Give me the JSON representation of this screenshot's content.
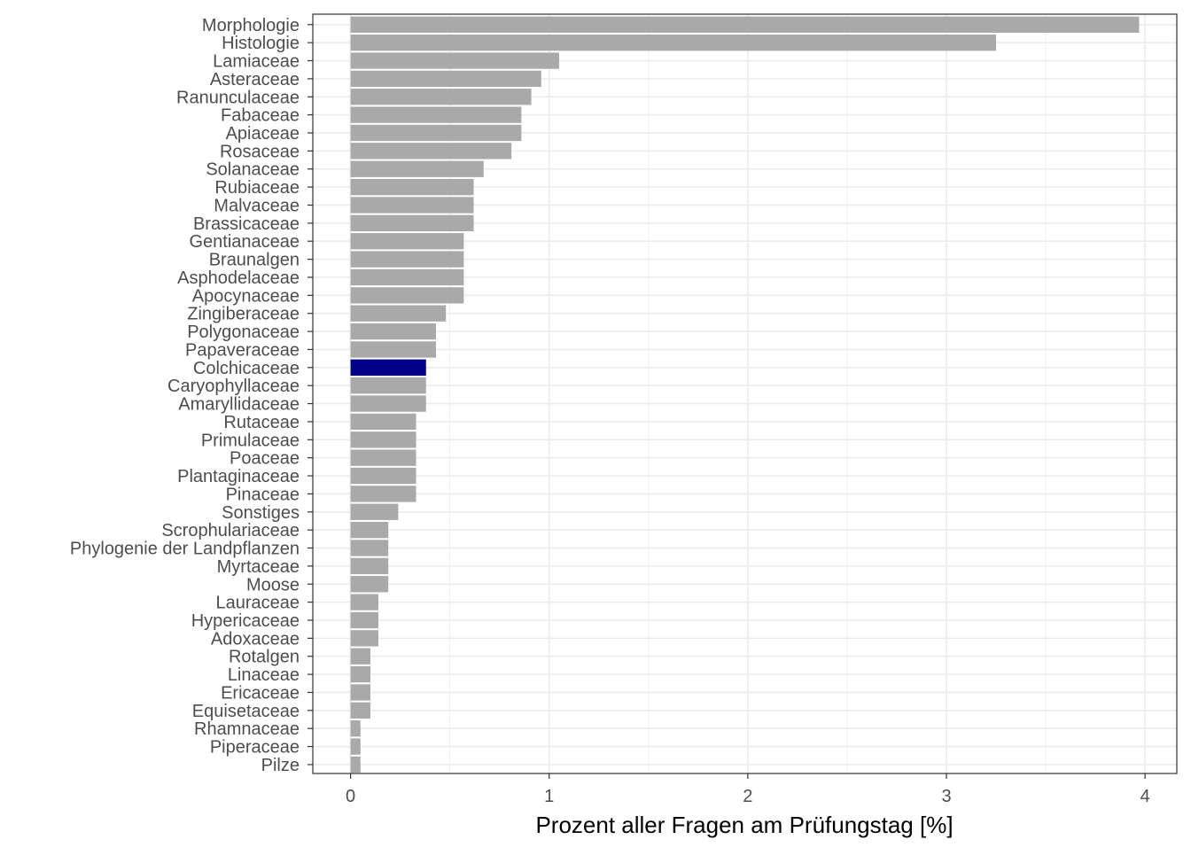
{
  "chart_data": {
    "type": "bar",
    "orientation": "horizontal",
    "xlabel": "Prozent aller Fragen am Prüfungstag [%]",
    "ylabel": "",
    "xlim": [
      -0.19,
      4.16
    ],
    "xticks": [
      0,
      1,
      2,
      3,
      4
    ],
    "grid": true,
    "colors": {
      "default_bar": "#a9a9a9",
      "highlight_bar": "#00008b",
      "grid": "#ebebeb",
      "panel_border": "#333333"
    },
    "highlight": "Colchicaceae",
    "categories": [
      "Morphologie",
      "Histologie",
      "Lamiaceae",
      "Asteraceae",
      "Ranunculaceae",
      "Fabaceae",
      "Apiaceae",
      "Rosaceae",
      "Solanaceae",
      "Rubiaceae",
      "Malvaceae",
      "Brassicaceae",
      "Gentianaceae",
      "Braunalgen",
      "Asphodelaceae",
      "Apocynaceae",
      "Zingiberaceae",
      "Polygonaceae",
      "Papaveraceae",
      "Colchicaceae",
      "Caryophyllaceae",
      "Amaryllidaceae",
      "Rutaceae",
      "Primulaceae",
      "Poaceae",
      "Plantaginaceae",
      "Pinaceae",
      "Sonstiges",
      "Scrophulariaceae",
      "Phylogenie der Landpflanzen",
      "Myrtaceae",
      "Moose",
      "Lauraceae",
      "Hypericaceae",
      "Adoxaceae",
      "Rotalgen",
      "Linaceae",
      "Ericaceae",
      "Equisetaceae",
      "Rhamnaceae",
      "Piperaceae",
      "Pilze"
    ],
    "values": [
      3.97,
      3.25,
      1.05,
      0.96,
      0.91,
      0.86,
      0.86,
      0.81,
      0.67,
      0.62,
      0.62,
      0.62,
      0.57,
      0.57,
      0.57,
      0.57,
      0.48,
      0.43,
      0.43,
      0.38,
      0.38,
      0.38,
      0.33,
      0.33,
      0.33,
      0.33,
      0.33,
      0.24,
      0.19,
      0.19,
      0.19,
      0.19,
      0.14,
      0.14,
      0.14,
      0.1,
      0.1,
      0.1,
      0.1,
      0.05,
      0.05,
      0.05
    ]
  }
}
